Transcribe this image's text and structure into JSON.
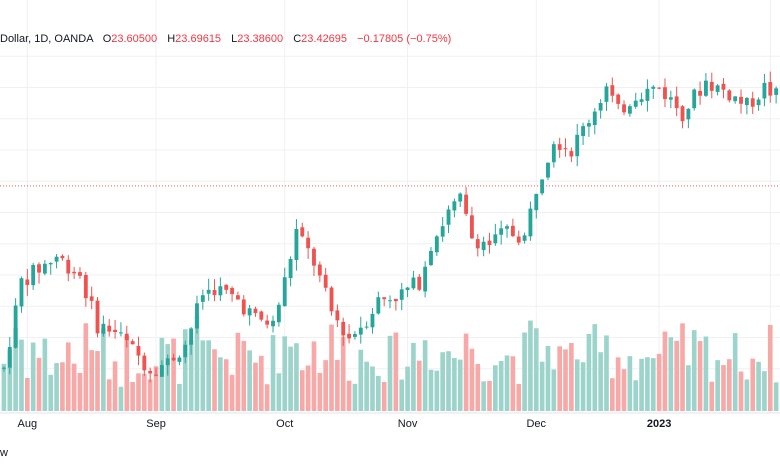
{
  "legend": {
    "symbol": "Dollar, 1D, OANDA",
    "o_label": "O",
    "o_value": "23.60500",
    "h_label": "H",
    "h_value": "23.69615",
    "l_label": "L",
    "l_value": "23.38600",
    "c_label": "C",
    "c_value": "23.42695",
    "change": "−0.17805 (−0.75%)"
  },
  "watermark": "w",
  "colors": {
    "up": "#26a69a",
    "down": "#ef5350",
    "vol_up": "#9cd4cc",
    "vol_down": "#f7a9a7",
    "last_line": "#ef5350",
    "grid": "#eef0f3"
  },
  "chart_data": {
    "type": "candlestick",
    "x_labels": [
      {
        "label": "Aug",
        "bar": 4
      },
      {
        "label": "Sep",
        "bar": 26
      },
      {
        "label": "Oct",
        "bar": 48
      },
      {
        "label": "Nov",
        "bar": 69
      },
      {
        "label": "Dec",
        "bar": 91
      },
      {
        "label": "2023",
        "bar": 112,
        "bold": true
      },
      {
        "label": "",
        "bar": 131
      }
    ],
    "y_range": [
      20.0,
      25.6
    ],
    "last_close": 23.42695,
    "grid": true,
    "volume_panel": true
  }
}
